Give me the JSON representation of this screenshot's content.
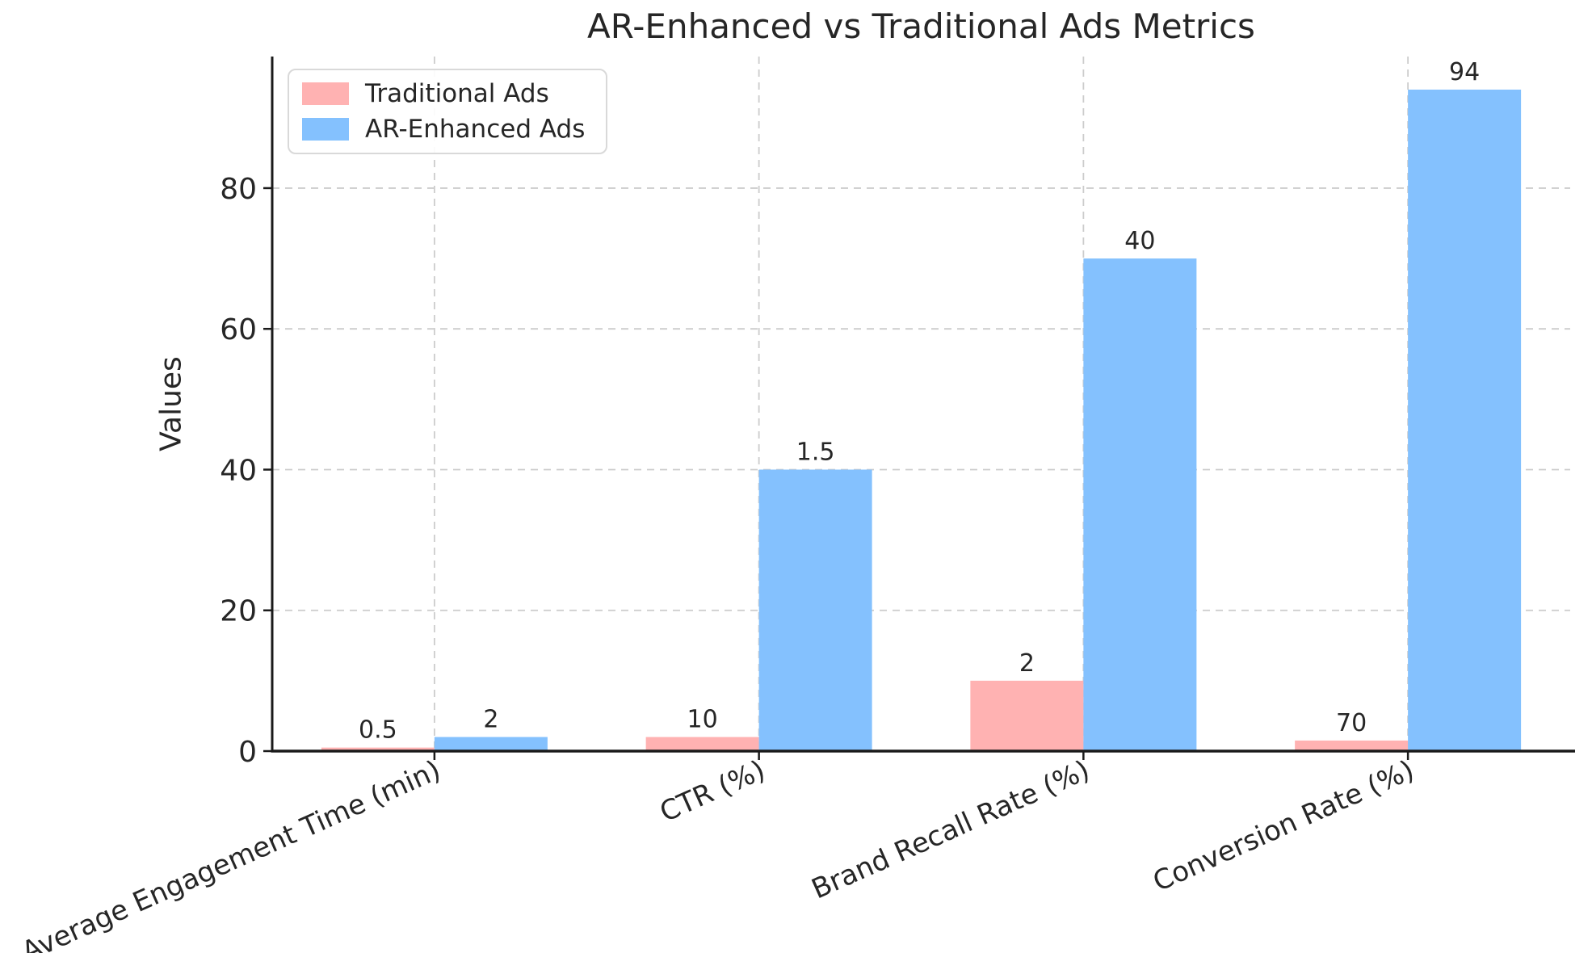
{
  "chart_data": {
    "type": "bar",
    "title": "AR-Enhanced vs Traditional Ads Metrics",
    "ylabel": "Values",
    "xlabel": "",
    "categories": [
      "Average Engagement Time (min)",
      "CTR (%)",
      "Brand Recall Rate (%)",
      "Conversion Rate (%)"
    ],
    "series": [
      {
        "name": "Traditional Ads",
        "color": "#ffb2b2",
        "values": [
          0.5,
          2,
          10,
          1.5
        ]
      },
      {
        "name": "AR-Enhanced Ads",
        "color": "#84c1fe",
        "values": [
          2,
          40,
          70,
          94
        ]
      }
    ],
    "bar_value_labels": [
      "0.5",
      "2",
      "10",
      "1.5",
      "2",
      "40",
      "70",
      "94"
    ],
    "yticks": [
      0,
      20,
      40,
      60,
      80
    ],
    "ylim": [
      0,
      98.7
    ],
    "grid": true,
    "grid_style": "dashed",
    "legend_position": "upper left"
  },
  "colors": {
    "text": "#262626",
    "grid": "#cccccc",
    "spine": "#1a1a1a",
    "background": "#ffffff",
    "legend_border": "#d9d9d9"
  }
}
